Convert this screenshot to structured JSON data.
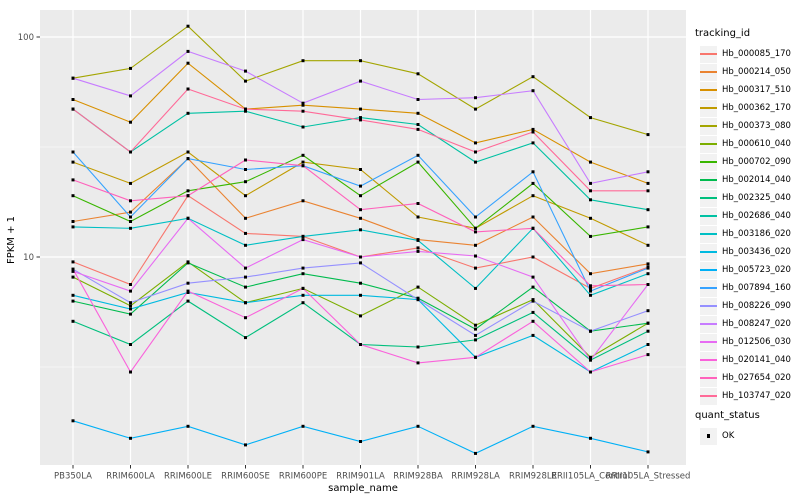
{
  "chart_data": {
    "type": "line",
    "title": "",
    "xlabel": "sample_name",
    "ylabel": "FPKM + 1",
    "y_scale": "log10",
    "ylim": [
      1.1,
      135
    ],
    "yticks": [
      100,
      10
    ],
    "y_minor_breaks": [
      31.62,
      3.162
    ],
    "grid": true,
    "legend_position": "right",
    "panel_color": "#EBEBEB",
    "gridline_color": "#FFFFFF",
    "point_color": "#000000",
    "categories": [
      "PB350LA",
      "RRIM600LA",
      "RRIM600LE",
      "RRIM600SE",
      "RRIM600PE",
      "RRIM901LA",
      "RRIM928BA",
      "RRIM928LA",
      "RRIM928LE",
      "RRII105LA_Control",
      "RRII105LA_Stressed"
    ],
    "series": [
      {
        "name": "Hb_000085_170",
        "color": "#F8766D",
        "values": [
          9.5,
          7.5,
          19,
          12.8,
          12.4,
          10,
          11,
          8.9,
          10,
          7.2,
          9
        ]
      },
      {
        "name": "Hb_000214_050",
        "color": "#EA8331",
        "values": [
          14.5,
          16,
          28,
          15,
          18,
          15,
          12,
          11.3,
          15.2,
          8.4,
          9.3
        ]
      },
      {
        "name": "Hb_000317_510",
        "color": "#D89000",
        "values": [
          52,
          41,
          76,
          47,
          49,
          47,
          45,
          33,
          38,
          27,
          21.6
        ]
      },
      {
        "name": "Hb_000362_170",
        "color": "#C09B00",
        "values": [
          27,
          21.6,
          30,
          19,
          27,
          25,
          15.2,
          13.5,
          19,
          15,
          11.3
        ]
      },
      {
        "name": "Hb_000373_080",
        "color": "#A3A500",
        "values": [
          65,
          72,
          112,
          63,
          78,
          78,
          68,
          47,
          66,
          43,
          36
        ]
      },
      {
        "name": "Hb_000610_040",
        "color": "#7CAE00",
        "values": [
          8.1,
          6,
          9.5,
          6.2,
          7.2,
          5.4,
          7.3,
          4.9,
          6.4,
          3.5,
          5
        ]
      },
      {
        "name": "Hb_000702_090",
        "color": "#39B600",
        "values": [
          19,
          14.5,
          20,
          22,
          29,
          19,
          27,
          13.5,
          21.6,
          12.4,
          13.7
        ]
      },
      {
        "name": "Hb_002014_040",
        "color": "#00BB4E",
        "values": [
          6.3,
          5.5,
          9.4,
          7.3,
          8.4,
          7.6,
          6.5,
          4.7,
          7.3,
          4.6,
          5
        ]
      },
      {
        "name": "Hb_002325_040",
        "color": "#00BF7D",
        "values": [
          5.1,
          4,
          6.3,
          4.3,
          6.2,
          4,
          3.9,
          4.2,
          5.6,
          3.4,
          4.6
        ]
      },
      {
        "name": "Hb_002686_040",
        "color": "#00C1A3",
        "values": [
          47,
          30,
          45,
          46,
          39,
          43,
          40,
          27,
          33,
          18.2,
          16.4
        ]
      },
      {
        "name": "Hb_003186_020",
        "color": "#00BFC4",
        "values": [
          13.7,
          13.5,
          15,
          11.3,
          12.4,
          13.3,
          11.9,
          7.2,
          13.5,
          6.7,
          8.4
        ]
      },
      {
        "name": "Hb_003436_020",
        "color": "#00BAE0",
        "values": [
          6.7,
          5.8,
          6.9,
          6.2,
          6.7,
          6.7,
          6.4,
          3.5,
          4.4,
          3,
          4
        ]
      },
      {
        "name": "Hb_005723_020",
        "color": "#00B0F6",
        "values": [
          1.8,
          1.5,
          1.7,
          1.4,
          1.7,
          1.45,
          1.7,
          1.28,
          1.7,
          1.5,
          1.3
        ]
      },
      {
        "name": "Hb_007894_160",
        "color": "#35A2FF",
        "values": [
          30,
          15.2,
          28,
          25,
          26,
          21,
          29,
          15.2,
          24.4,
          7,
          8.9
        ]
      },
      {
        "name": "Hb_008226_090",
        "color": "#9590FF",
        "values": [
          8.8,
          6.2,
          7.6,
          8.1,
          8.9,
          9.4,
          6.4,
          4.4,
          6.3,
          4.6,
          5.7
        ]
      },
      {
        "name": "Hb_008247_020",
        "color": "#C77CFF",
        "values": [
          65,
          54,
          86,
          70,
          50,
          63,
          52,
          53,
          57,
          21.6,
          24.4
        ]
      },
      {
        "name": "Hb_012506_030",
        "color": "#E76BF3",
        "values": [
          8.6,
          7,
          15,
          8.9,
          12,
          10,
          10.6,
          10.1,
          8.1,
          3.4,
          7.5
        ]
      },
      {
        "name": "Hb_020141_040",
        "color": "#FA62DB",
        "values": [
          8.8,
          3,
          7,
          5.3,
          7.2,
          4,
          3.3,
          3.5,
          5.1,
          3,
          3.6
        ]
      },
      {
        "name": "Hb_027654_020",
        "color": "#FF62BC",
        "values": [
          22.4,
          18,
          19,
          27.6,
          26,
          16.4,
          17.5,
          13,
          13.5,
          7.4,
          7.5
        ]
      },
      {
        "name": "Hb_103747_020",
        "color": "#FF6A98",
        "values": [
          47,
          30,
          58,
          47,
          46,
          42,
          38,
          30,
          37,
          20,
          20
        ]
      }
    ]
  },
  "legend": {
    "tracking_title": "tracking_id",
    "quant_title": "quant_status",
    "quant_items": [
      "OK"
    ]
  }
}
